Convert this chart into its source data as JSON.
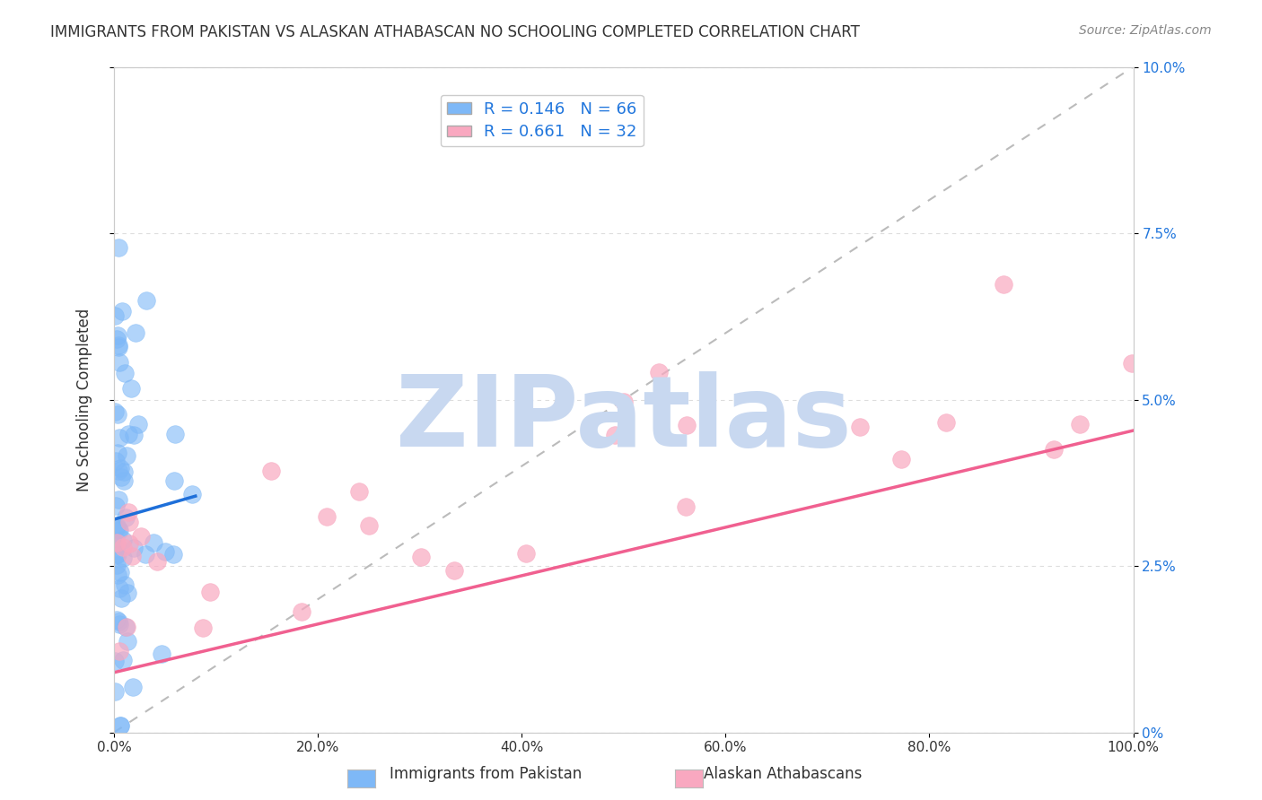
{
  "title": "IMMIGRANTS FROM PAKISTAN VS ALASKAN ATHABASCAN NO SCHOOLING COMPLETED CORRELATION CHART",
  "source": "Source: ZipAtlas.com",
  "ylabel": "No Schooling Completed",
  "watermark": "ZIPatlas",
  "blue_R": 0.146,
  "blue_N": 66,
  "pink_R": 0.661,
  "pink_N": 32,
  "blue_label": "Immigrants from Pakistan",
  "pink_label": "Alaskan Athabascans",
  "blue_color": "#7EB8F7",
  "pink_color": "#F9A8C0",
  "blue_line_color": "#1E6FD9",
  "pink_line_color": "#F06090",
  "xlim": [
    0,
    100
  ],
  "ylim": [
    0,
    10
  ],
  "yticks": [
    0,
    2.5,
    5.0,
    7.5,
    10.0
  ],
  "xticks": [
    0,
    20,
    40,
    60,
    80,
    100
  ],
  "xticklabels": [
    "0.0%",
    "20.0%",
    "40.0%",
    "60.0%",
    "80.0%",
    "100.0%"
  ],
  "yticklabels_right": [
    "0%",
    "2.5%",
    "5.0%",
    "7.5%",
    "10.0%"
  ],
  "grid_color": "#DDDDDD",
  "background_color": "#FFFFFF",
  "watermark_color": "#C8D8F0",
  "watermark_size": 80
}
